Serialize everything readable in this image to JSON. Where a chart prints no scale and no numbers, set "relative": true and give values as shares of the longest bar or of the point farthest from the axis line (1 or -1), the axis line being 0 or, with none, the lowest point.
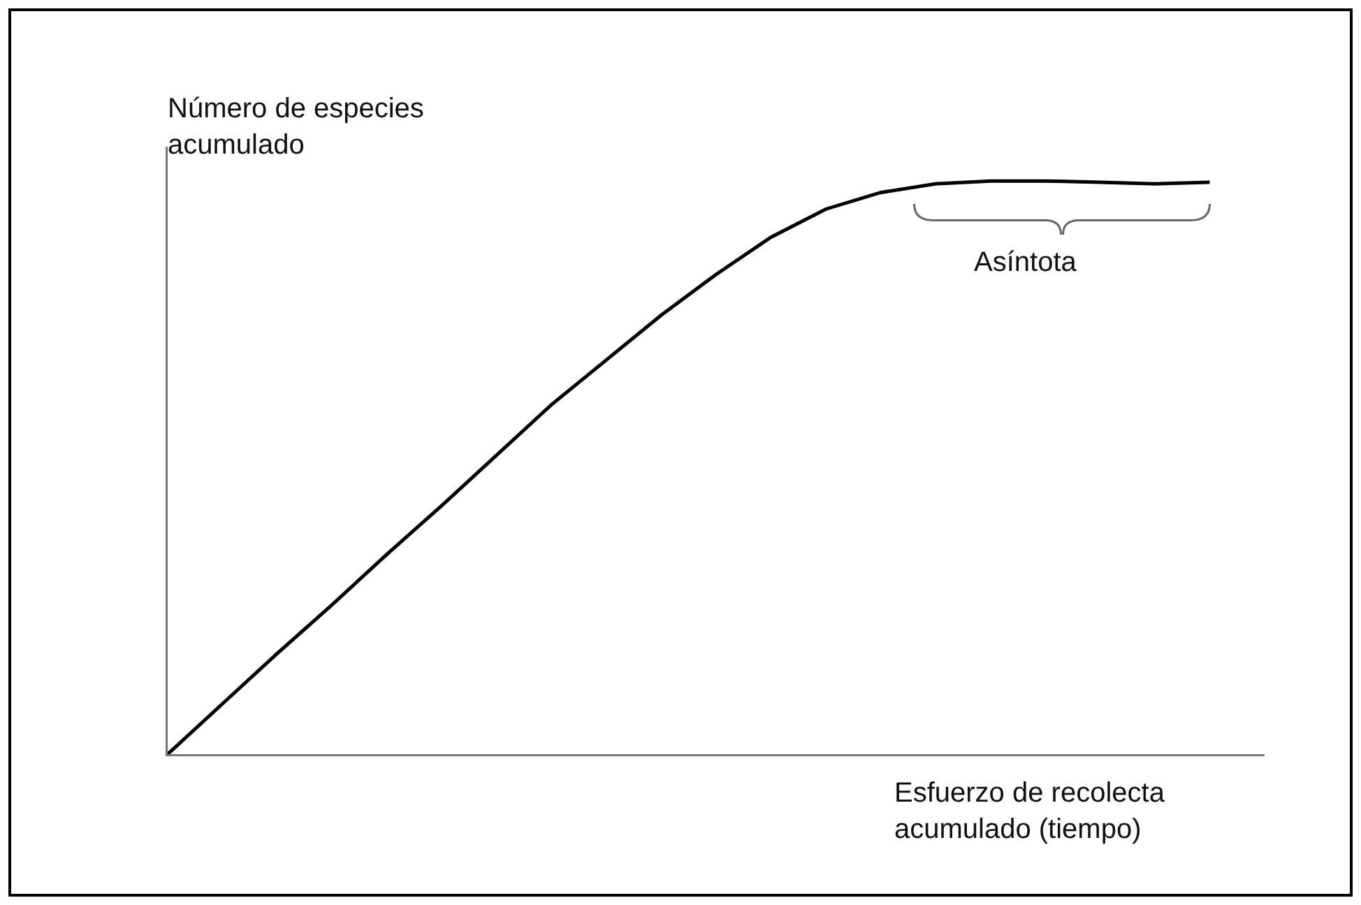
{
  "chart_data": {
    "type": "line",
    "relative": true,
    "xlabel": "Esfuerzo de recolecta acumulado (tiempo)",
    "ylabel": "Número de especies acumulado",
    "annotations": [
      "Asíntota"
    ],
    "categories": [
      null,
      null,
      null,
      null,
      null,
      null,
      null,
      null,
      null,
      null,
      null,
      null,
      null,
      null,
      null,
      null,
      null,
      null,
      null,
      null,
      null
    ],
    "series": [
      {
        "color": "#000000",
        "values": [
          0,
          0.088,
          0.176,
          0.261,
          0.349,
          0.434,
          0.522,
          0.61,
          0.688,
          0.766,
          0.837,
          0.902,
          0.951,
          0.98,
          0.995,
          1,
          1,
          0.998,
          0.995,
          0.998,
          null
        ]
      }
    ],
    "grid": false,
    "legend": false,
    "marker": "none",
    "line_style": "solid"
  }
}
